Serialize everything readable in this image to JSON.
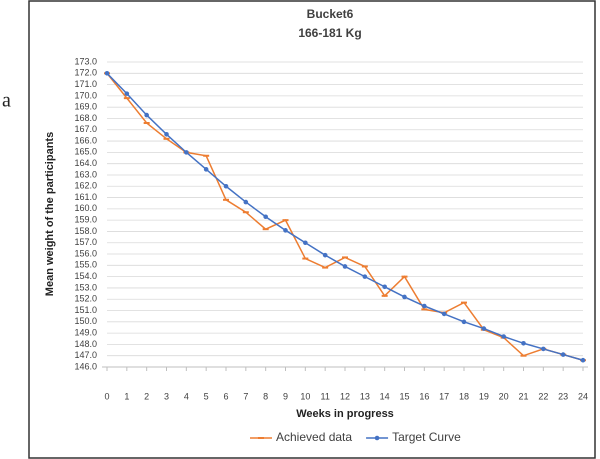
{
  "side_text": "a",
  "chart_data": {
    "type": "line",
    "title": "Bucket6",
    "subtitle": "166-181 Kg",
    "x_label": "Weeks in progress",
    "y_label": "Mean weight of the participants",
    "x": [
      0,
      1,
      2,
      3,
      4,
      5,
      6,
      7,
      8,
      9,
      10,
      11,
      12,
      13,
      14,
      15,
      16,
      17,
      18,
      19,
      20,
      21,
      22,
      23,
      24
    ],
    "series": [
      {
        "name": "Achieved data",
        "color": "#ed7d31",
        "marker": "dash",
        "values": [
          172.0,
          169.8,
          167.6,
          166.2,
          165.0,
          164.7,
          160.8,
          159.7,
          158.2,
          159.0,
          155.6,
          154.8,
          155.7,
          154.9,
          152.3,
          154.0,
          151.1,
          150.8,
          151.7,
          149.3,
          148.6,
          147.0,
          147.6,
          147.1,
          146.6
        ]
      },
      {
        "name": "Target Curve",
        "color": "#4472c4",
        "marker": "dot",
        "values": [
          172.0,
          170.2,
          168.3,
          166.6,
          165.0,
          163.5,
          162.0,
          160.6,
          159.3,
          158.1,
          157.0,
          155.9,
          154.9,
          154.0,
          153.1,
          152.2,
          151.4,
          150.7,
          150.0,
          149.4,
          148.7,
          148.1,
          147.6,
          147.1,
          146.6
        ]
      }
    ],
    "xlim": [
      0,
      24
    ],
    "xticks": [
      0,
      1,
      2,
      3,
      4,
      5,
      6,
      7,
      8,
      9,
      10,
      11,
      12,
      13,
      14,
      15,
      16,
      17,
      18,
      19,
      20,
      21,
      22,
      23,
      24
    ],
    "ylim": [
      146,
      173
    ],
    "yticks": [
      {
        "value": 146,
        "label": "146.0"
      },
      {
        "value": 147,
        "label": "147.0"
      },
      {
        "value": 148,
        "label": "148.0"
      },
      {
        "value": 149,
        "label": "149.0"
      },
      {
        "value": 150,
        "label": "150.0"
      },
      {
        "value": 151,
        "label": "151.0"
      },
      {
        "value": 152,
        "label": "152.0"
      },
      {
        "value": 153,
        "label": "153.0"
      },
      {
        "value": 154,
        "label": "154.0"
      },
      {
        "value": 155,
        "label": "155.0"
      },
      {
        "value": 156,
        "label": "156.0"
      },
      {
        "value": 157,
        "label": "157.0"
      },
      {
        "value": 158,
        "label": "158.0"
      },
      {
        "value": 159,
        "label": "159.0"
      },
      {
        "value": 160,
        "label": "160.0"
      },
      {
        "value": 161,
        "label": "161.0"
      },
      {
        "value": 162,
        "label": "162.0"
      },
      {
        "value": 163,
        "label": "163.0"
      },
      {
        "value": 164,
        "label": "164.0"
      },
      {
        "value": 165,
        "label": "165.0"
      },
      {
        "value": 166,
        "label": "166.0"
      },
      {
        "value": 167,
        "label": "167.0"
      },
      {
        "value": 168,
        "label": "168.0"
      },
      {
        "value": 169,
        "label": "169.0"
      },
      {
        "value": 170,
        "label": "170.0"
      },
      {
        "value": 171,
        "label": "171.0"
      },
      {
        "value": 172,
        "label": "172.0"
      },
      {
        "value": 173,
        "label": "173.0"
      }
    ],
    "grid": true,
    "legend": "bottom"
  }
}
